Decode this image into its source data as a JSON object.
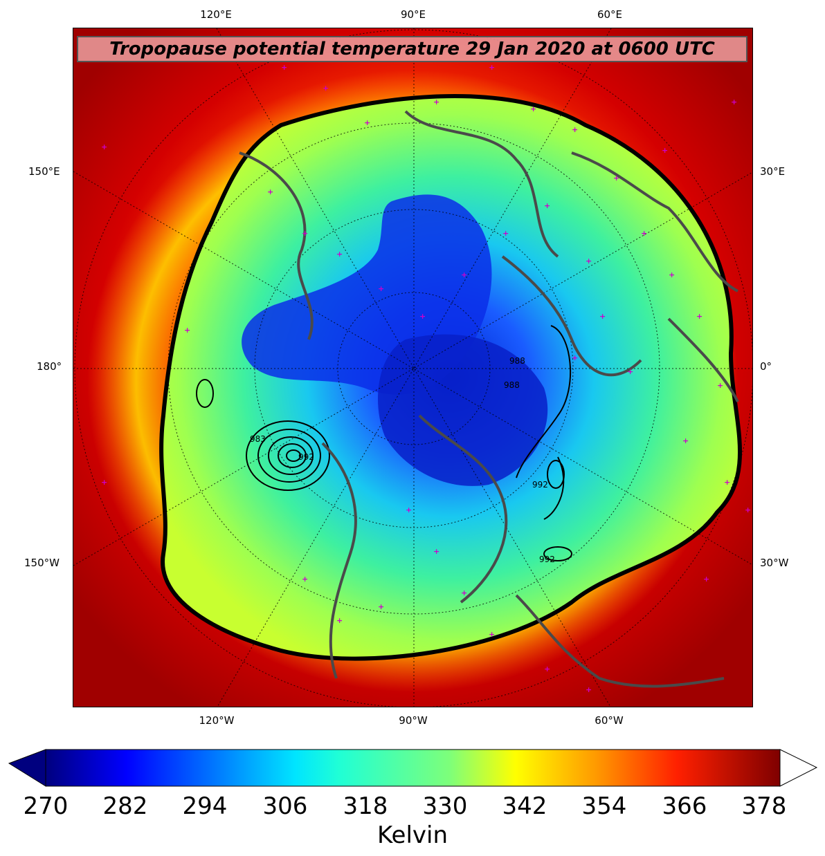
{
  "title": "Tropopause potential temperature 29 Jan 2020 at 0600 UTC",
  "top_lon_labels": [
    "120°E",
    "90°E",
    "60°E"
  ],
  "bottom_lon_labels": [
    "120°W",
    "90°W",
    "60°W"
  ],
  "left_lat_labels": [
    "150°E",
    "180°",
    "150°W"
  ],
  "right_lat_labels": [
    "30°E",
    "0°",
    "30°W"
  ],
  "colorbar": {
    "ticks": [
      "270",
      "282",
      "294",
      "306",
      "318",
      "330",
      "342",
      "354",
      "366",
      "378"
    ],
    "label": "Kelvin",
    "min": 270,
    "max": 381,
    "extend": "both"
  },
  "contour_labels": [
    "983",
    "992",
    "992",
    "992",
    "988",
    "988"
  ],
  "colors": {
    "map_background": "#b30000",
    "coastlines": "#4a4a4a",
    "station_markers": "#cc00cc",
    "title_box": "#eba0a0"
  }
}
